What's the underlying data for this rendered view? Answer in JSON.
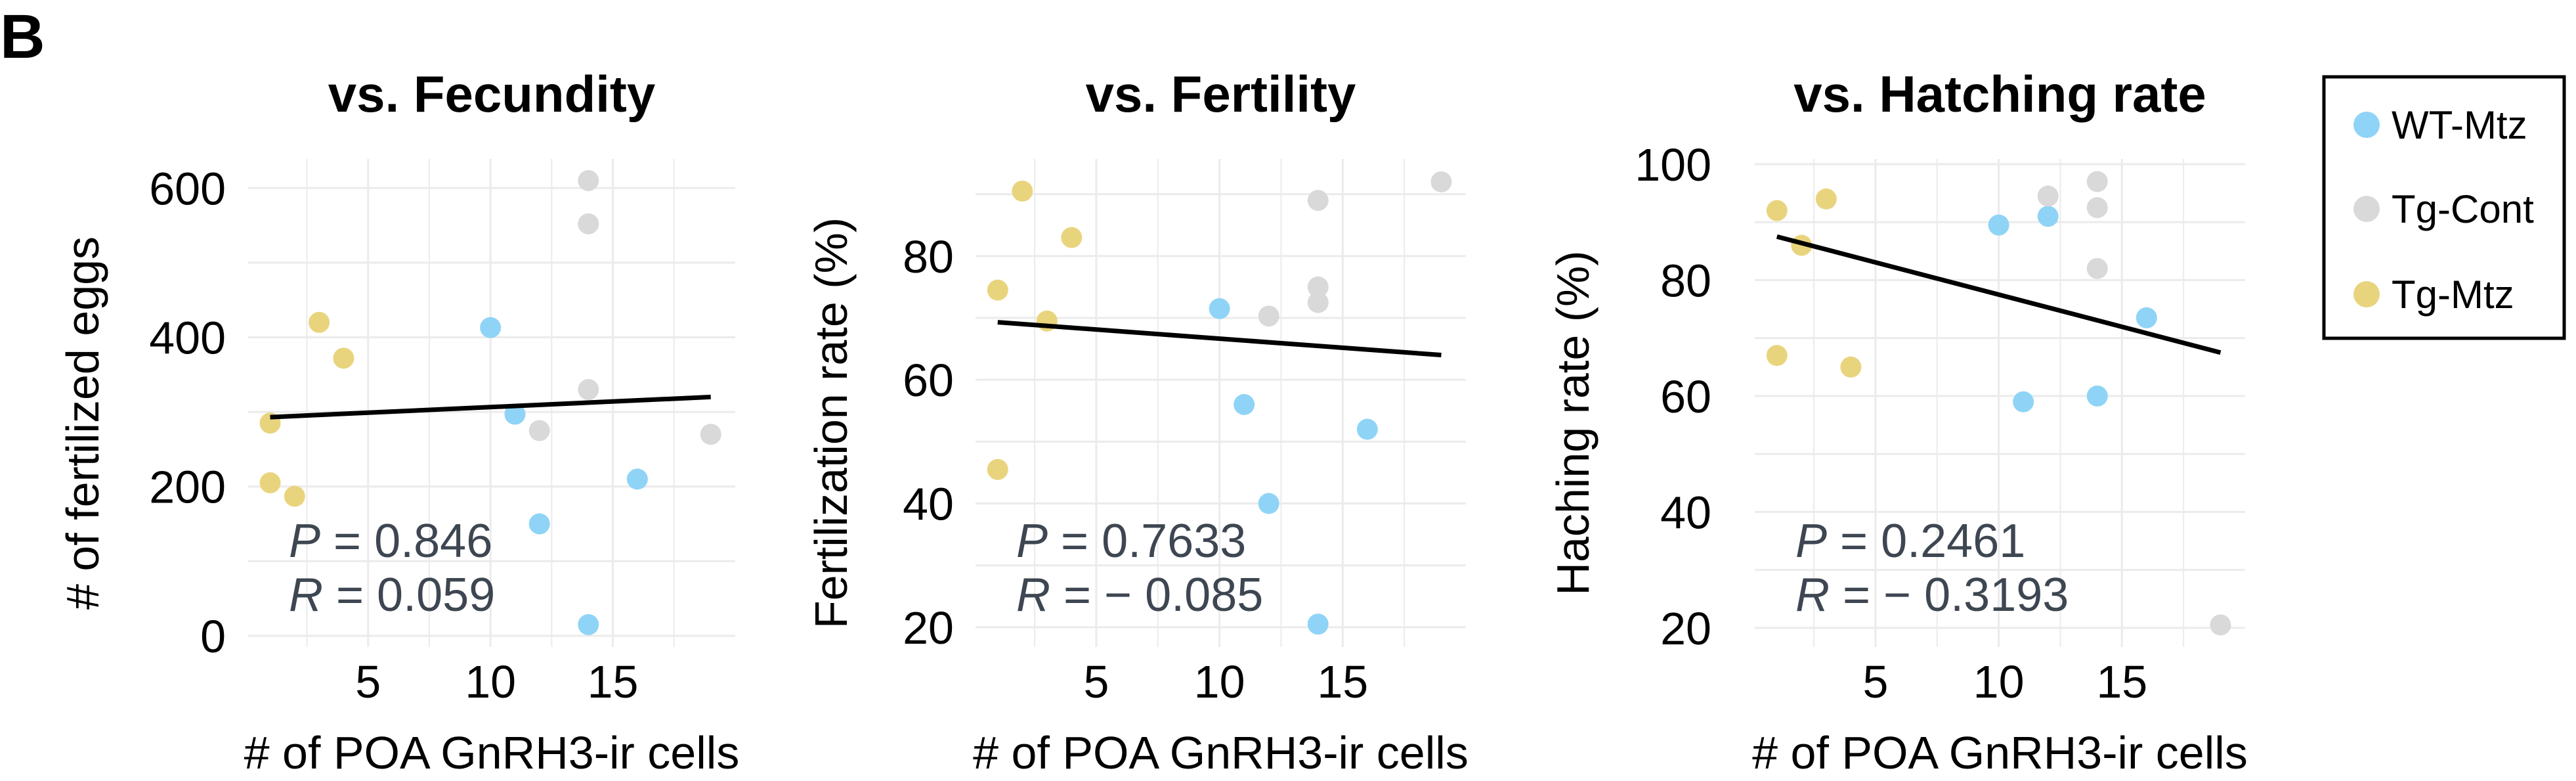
{
  "figure_label": "B",
  "colors": {
    "WT-Mtz": "#8fd4f6",
    "Tg-Cont": "#d9d9d9",
    "Tg-Mtz": "#e9d47e",
    "fit_line": "#000000",
    "grid": "#ebebeb"
  },
  "legend": {
    "placement": "right",
    "entries": [
      "WT-Mtz",
      "Tg-Cont",
      "Tg-Mtz"
    ]
  },
  "chart_data": [
    {
      "type": "scatter",
      "title": "vs. Fecundity",
      "xlabel": "# of POA GnRH3-ir cells",
      "ylabel": "# of fertilized eggs",
      "xlim": [
        0.1,
        20
      ],
      "ylim": [
        -15,
        639
      ],
      "xticks": [
        5,
        10,
        15
      ],
      "yticks": [
        0,
        200,
        400,
        600
      ],
      "grid": true,
      "stats": {
        "p_label": "P",
        "p_text": "= 0.846",
        "r_label": "R",
        "r_text": "= 0.059"
      },
      "fit": {
        "x": [
          1,
          19
        ],
        "y": [
          293,
          320
        ]
      },
      "series": [
        {
          "name": "WT-Mtz",
          "points": [
            [
              10,
              413
            ],
            [
              11,
              297
            ],
            [
              16,
              210
            ],
            [
              12,
              150
            ],
            [
              14,
              15
            ]
          ]
        },
        {
          "name": "Tg-Cont",
          "points": [
            [
              14,
              610
            ],
            [
              14,
              552
            ],
            [
              14,
              330
            ],
            [
              12,
              275
            ],
            [
              19,
              270
            ]
          ]
        },
        {
          "name": "Tg-Mtz",
          "points": [
            [
              3,
              420
            ],
            [
              4,
              372
            ],
            [
              1,
              285
            ],
            [
              1,
              205
            ],
            [
              2,
              187
            ]
          ]
        }
      ]
    },
    {
      "type": "scatter",
      "title": "vs. Fertility",
      "xlabel": "# of POA GnRH3-ir cells",
      "ylabel": "Fertilization rate (%)",
      "xlim": [
        0.1,
        20
      ],
      "ylim": [
        16.8,
        95.7
      ],
      "xticks": [
        5,
        10,
        15
      ],
      "yticks": [
        20,
        40,
        60,
        80
      ],
      "grid": true,
      "stats": {
        "p_label": "P",
        "p_text": "=  0.7633",
        "r_label": "R",
        "r_text": "= − 0.085"
      },
      "fit": {
        "x": [
          1,
          19
        ],
        "y": [
          69.3,
          64
        ]
      },
      "series": [
        {
          "name": "WT-Mtz",
          "points": [
            [
              10,
              71.5
            ],
            [
              11,
              56
            ],
            [
              16,
              52
            ],
            [
              12,
              40
            ],
            [
              14,
              20.5
            ]
          ]
        },
        {
          "name": "Tg-Cont",
          "points": [
            [
              14,
              89
            ],
            [
              19,
              92
            ],
            [
              14,
              75
            ],
            [
              14,
              72.5
            ],
            [
              12,
              70.3
            ]
          ]
        },
        {
          "name": "Tg-Mtz",
          "points": [
            [
              2,
              90.5
            ],
            [
              4,
              83
            ],
            [
              1,
              74.5
            ],
            [
              3,
              69.5
            ],
            [
              1,
              45.5
            ]
          ]
        }
      ]
    },
    {
      "type": "scatter",
      "title": "vs. Hatching rate",
      "xlabel": "# of POA GnRH3-ir cells",
      "ylabel": "Haching rate (%)",
      "xlim": [
        0.1,
        20
      ],
      "ylim": [
        16.7,
        100.9
      ],
      "xticks": [
        5,
        10,
        15
      ],
      "yticks": [
        20,
        40,
        60,
        80,
        100
      ],
      "grid": true,
      "stats": {
        "p_label": "P",
        "p_text": "=  0.2461",
        "r_label": "R",
        "r_text": "= − 0.3193"
      },
      "fit": {
        "x": [
          1,
          19
        ],
        "y": [
          87.5,
          67.5
        ]
      },
      "series": [
        {
          "name": "WT-Mtz",
          "points": [
            [
              10,
              89.5
            ],
            [
              12,
              91
            ],
            [
              16,
              73.5
            ],
            [
              11,
              59
            ],
            [
              14,
              60
            ]
          ]
        },
        {
          "name": "Tg-Cont",
          "points": [
            [
              14,
              97
            ],
            [
              12,
              94.5
            ],
            [
              14,
              92.5
            ],
            [
              14,
              82
            ],
            [
              19,
              20.5
            ]
          ]
        },
        {
          "name": "Tg-Mtz",
          "points": [
            [
              1,
              92
            ],
            [
              3,
              94
            ],
            [
              2,
              86
            ],
            [
              1,
              67
            ],
            [
              4,
              65
            ]
          ]
        }
      ]
    }
  ]
}
